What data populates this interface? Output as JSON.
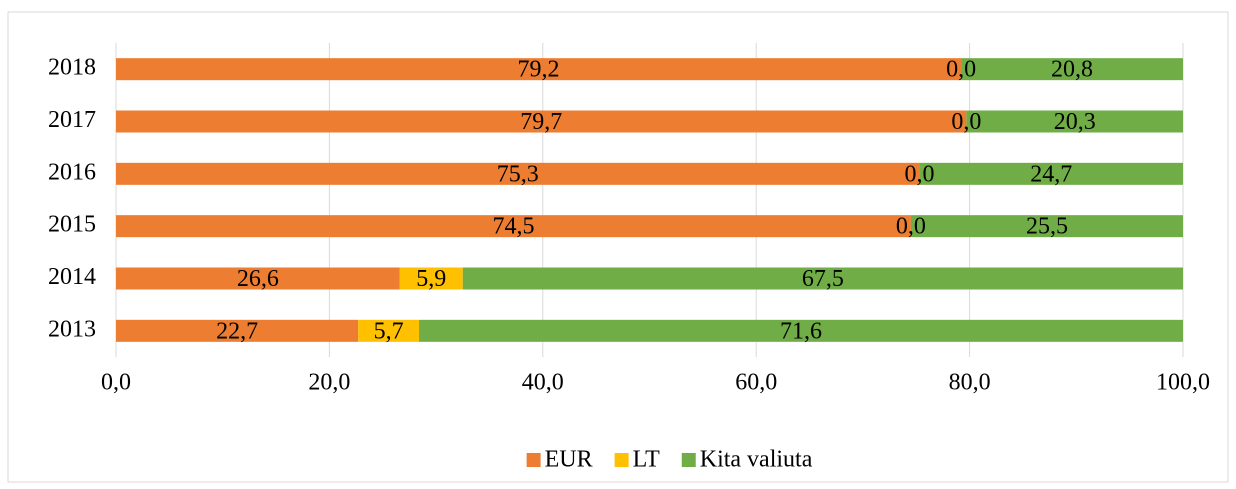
{
  "chart_data": {
    "type": "stacked_bar_horizontal",
    "categories": [
      "2013",
      "2014",
      "2015",
      "2016",
      "2017",
      "2018"
    ],
    "series": [
      {
        "name": "EUR",
        "color": "#ed7d31",
        "values": [
          22.7,
          26.6,
          74.5,
          75.3,
          79.7,
          79.2
        ],
        "value_labels": [
          "22,7",
          "26,6",
          "74,5",
          "75,3",
          "79,7",
          "79,2"
        ]
      },
      {
        "name": "LT",
        "color": "#ffc000",
        "values": [
          5.7,
          5.9,
          0,
          0,
          0,
          0
        ],
        "value_labels": [
          "5,7",
          "5,9",
          "0,0",
          "0,0",
          "0,0",
          "0,0"
        ]
      },
      {
        "name": "Kita valiuta",
        "color": "#70ad47",
        "values": [
          71.6,
          67.5,
          25.5,
          24.7,
          20.3,
          20.8
        ],
        "value_labels": [
          "71,6",
          "67,5",
          "25,5",
          "24,7",
          "20,3",
          "20,8"
        ]
      }
    ],
    "xlim": [
      0,
      100
    ],
    "xticks": [
      {
        "value": 0,
        "label": "0,0"
      },
      {
        "value": 20,
        "label": "20,0"
      },
      {
        "value": 40,
        "label": "40,0"
      },
      {
        "value": 60,
        "label": "60,0"
      },
      {
        "value": 80,
        "label": "80,0"
      },
      {
        "value": 100,
        "label": "100,0"
      }
    ],
    "grid": true,
    "legend": "bottom"
  }
}
